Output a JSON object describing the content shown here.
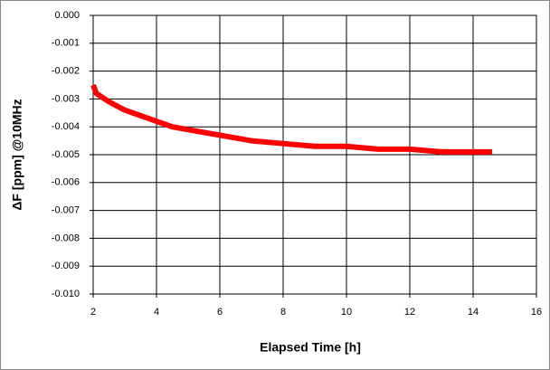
{
  "chart_data": {
    "type": "line",
    "xlabel": "Elapsed Time [h]",
    "ylabel": "ΔF [ppm] @10MHz",
    "x": [
      2.0,
      2.1,
      2.5,
      3.0,
      3.5,
      4.0,
      4.5,
      5.0,
      6.0,
      7.0,
      8.0,
      9.0,
      10.0,
      11.0,
      12.0,
      13.0,
      14.0,
      14.6
    ],
    "values": [
      -0.0025,
      -0.0028,
      -0.0031,
      -0.0034,
      -0.0036,
      -0.0038,
      -0.004,
      -0.0041,
      -0.0043,
      -0.0045,
      -0.0046,
      -0.0047,
      -0.0047,
      -0.0048,
      -0.0048,
      -0.0049,
      -0.0049,
      -0.0049
    ],
    "color": "#ff0000",
    "xlim": [
      2,
      16
    ],
    "xticks": [
      2,
      4,
      6,
      8,
      10,
      12,
      14,
      16
    ],
    "ylim": [
      -0.01,
      0
    ],
    "yticks": [
      {
        "value": 0,
        "label": "0.000"
      },
      -0.001,
      -0.002,
      -0.003,
      -0.004,
      -0.005,
      -0.006,
      -0.007,
      -0.008,
      -0.009,
      {
        "value": -0.01,
        "label": "-0.010"
      }
    ],
    "grid": true
  }
}
